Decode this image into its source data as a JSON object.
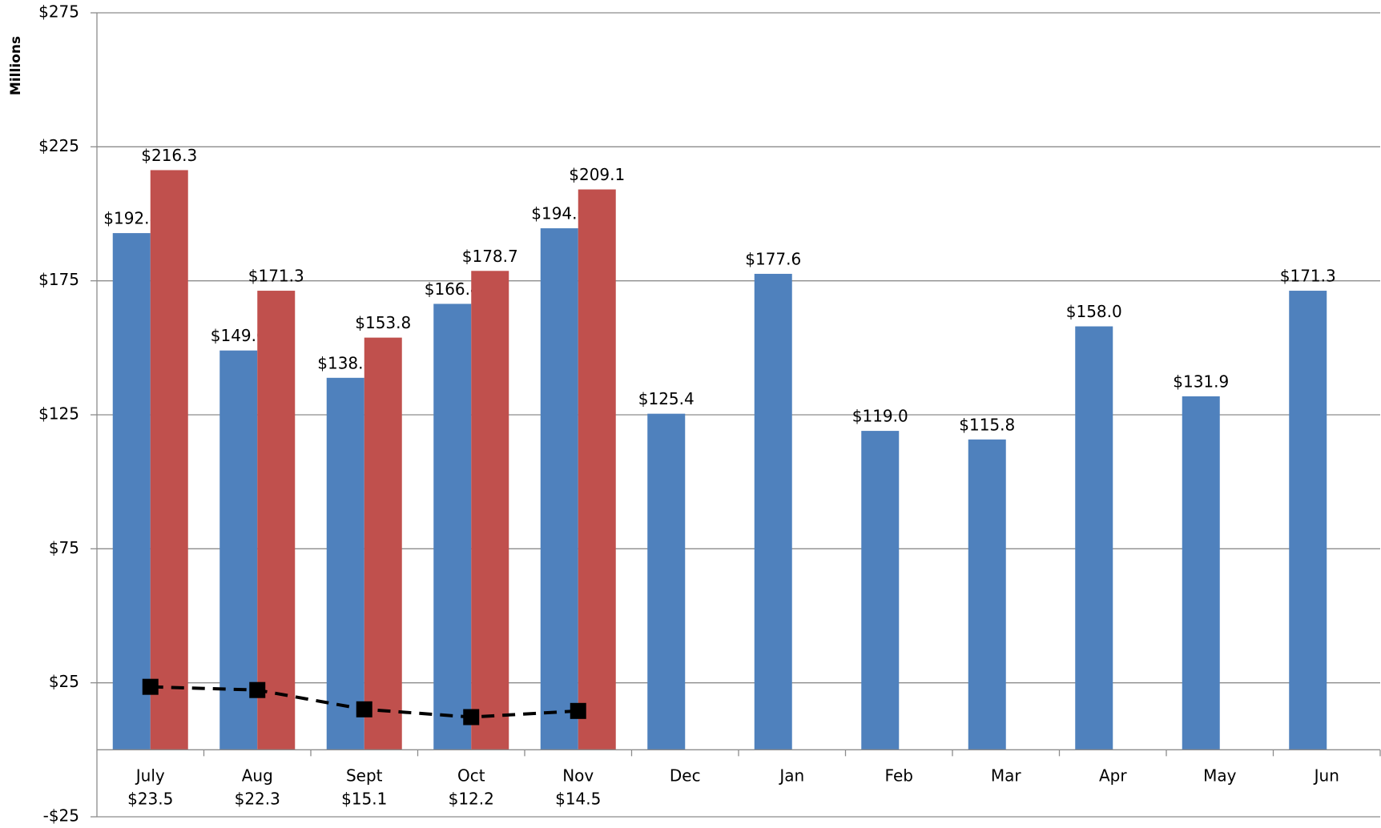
{
  "chart_data": {
    "type": "bar-line",
    "y_axis_label": "Millions",
    "categories": [
      "July",
      "Aug",
      "Sept",
      "Oct",
      "Nov",
      "Dec",
      "Jan",
      "Feb",
      "Mar",
      "Apr",
      "May",
      "Jun"
    ],
    "series": [
      {
        "type": "bar",
        "color": "#4f81bd",
        "label_color": "#2a5a96",
        "values": [
          192.8,
          149.0,
          138.8,
          166.4,
          194.6,
          125.4,
          177.6,
          119.0,
          115.8,
          158.0,
          131.9,
          171.3
        ],
        "value_labels": [
          "$192.8",
          "$149.0",
          "$138.8",
          "$166.4",
          "$194.6",
          "$125.4",
          "$177.6",
          "$119.0",
          "$115.8",
          "$158.0",
          "$131.9",
          "$171.3"
        ]
      },
      {
        "type": "bar",
        "color": "#c0504d",
        "label_color": "#c0504d",
        "values": [
          216.3,
          171.3,
          153.8,
          178.7,
          209.1,
          null,
          null,
          null,
          null,
          null,
          null,
          null
        ],
        "value_labels": [
          "$216.3",
          "$171.3",
          "$153.8",
          "$178.7",
          "$209.1",
          null,
          null,
          null,
          null,
          null,
          null,
          null
        ]
      },
      {
        "type": "line",
        "color": "#000000",
        "values": [
          23.5,
          22.3,
          15.1,
          12.2,
          14.5,
          null,
          null,
          null,
          null,
          null,
          null,
          null
        ],
        "value_labels": [
          "$23.5",
          "$22.3",
          "$15.1",
          "$12.2",
          "$14.5",
          null,
          null,
          null,
          null,
          null,
          null,
          null
        ]
      }
    ],
    "ylim": [
      -25,
      275
    ],
    "yticks": [
      {
        "value": -25,
        "label": "-$25"
      },
      {
        "value": 25,
        "label": "$25"
      },
      {
        "value": 75,
        "label": "$75"
      },
      {
        "value": 125,
        "label": "$125"
      },
      {
        "value": 175,
        "label": "$175"
      },
      {
        "value": 225,
        "label": "$225"
      },
      {
        "value": 275,
        "label": "$275"
      }
    ],
    "grid": true
  }
}
